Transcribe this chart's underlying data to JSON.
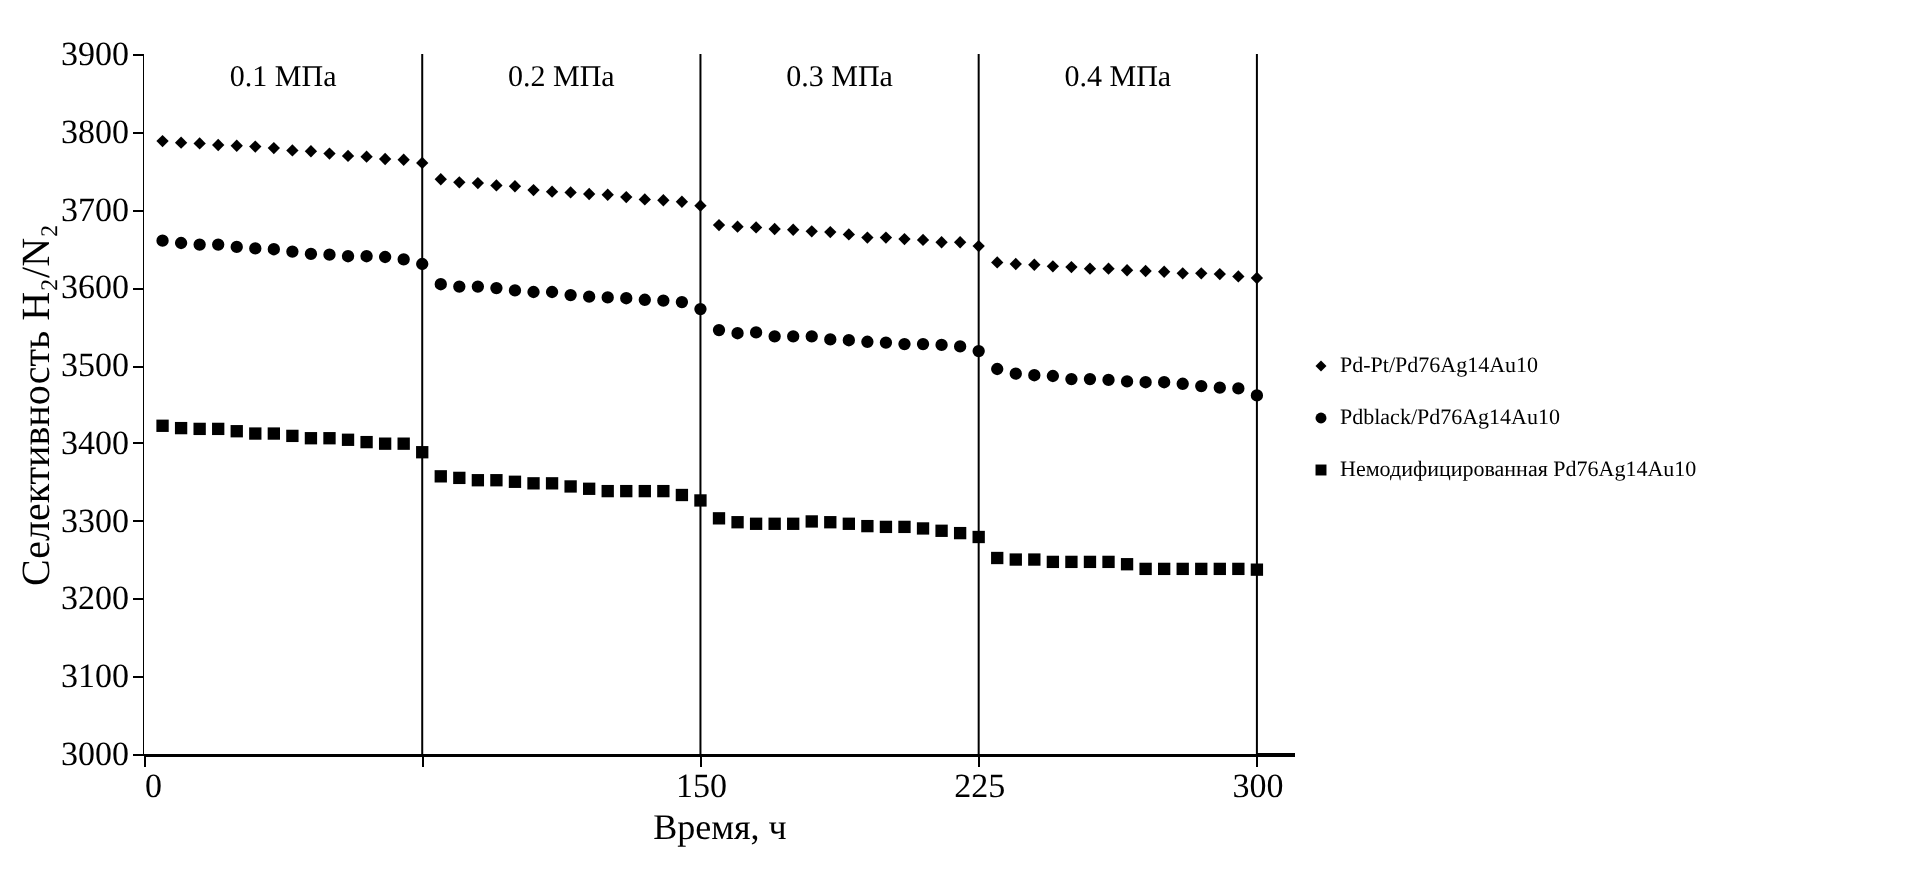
{
  "chart_data": {
    "type": "scatter",
    "xlabel": "Время, ч",
    "ylabel": "Селективность H₂/N₂",
    "x": [
      5,
      10,
      15,
      20,
      25,
      30,
      35,
      40,
      45,
      50,
      55,
      60,
      65,
      70,
      75,
      80,
      85,
      90,
      95,
      100,
      105,
      110,
      115,
      120,
      125,
      130,
      135,
      140,
      145,
      150,
      155,
      160,
      165,
      170,
      175,
      180,
      185,
      190,
      195,
      200,
      205,
      210,
      215,
      220,
      225,
      230,
      235,
      240,
      245,
      250,
      255,
      260,
      265,
      270,
      275,
      280,
      285,
      290,
      295,
      300
    ],
    "series": [
      {
        "name": "Pd-Pt/Pd76Ag14Au10",
        "color": "#000000",
        "marker": "diamond",
        "values": [
          3788,
          3786,
          3785,
          3783,
          3782,
          3781,
          3779,
          3776,
          3775,
          3772,
          3769,
          3768,
          3765,
          3764,
          3760,
          3739,
          3735,
          3734,
          3731,
          3730,
          3725,
          3723,
          3722,
          3720,
          3719,
          3716,
          3713,
          3712,
          3710,
          3705,
          3680,
          3678,
          3677,
          3675,
          3674,
          3672,
          3671,
          3668,
          3664,
          3664,
          3662,
          3661,
          3658,
          3658,
          3653,
          3632,
          3630,
          3629,
          3627,
          3626,
          3624,
          3624,
          3622,
          3621,
          3620,
          3618,
          3618,
          3617,
          3614,
          3612
        ]
      },
      {
        "name": "Pdblack/Pd76Ag14Au10",
        "color": "#000000",
        "marker": "circle",
        "values": [
          3660,
          3657,
          3655,
          3655,
          3652,
          3650,
          3649,
          3646,
          3643,
          3642,
          3640,
          3640,
          3639,
          3636,
          3630,
          3604,
          3601,
          3601,
          3599,
          3596,
          3594,
          3594,
          3590,
          3588,
          3587,
          3586,
          3584,
          3583,
          3581,
          3572,
          3545,
          3541,
          3542,
          3537,
          3537,
          3537,
          3533,
          3532,
          3530,
          3529,
          3527,
          3527,
          3526,
          3524,
          3518,
          3495,
          3489,
          3487,
          3486,
          3482,
          3482,
          3481,
          3479,
          3478,
          3478,
          3476,
          3473,
          3471,
          3470,
          3461
        ]
      },
      {
        "name": "Немодифицированная Pd76Ag14Au10",
        "color": "#000000",
        "marker": "square",
        "values": [
          3422,
          3419,
          3418,
          3418,
          3415,
          3412,
          3412,
          3409,
          3406,
          3406,
          3404,
          3401,
          3399,
          3399,
          3388,
          3357,
          3355,
          3352,
          3352,
          3350,
          3348,
          3348,
          3344,
          3341,
          3338,
          3338,
          3338,
          3338,
          3333,
          3326,
          3303,
          3298,
          3296,
          3296,
          3296,
          3299,
          3298,
          3296,
          3293,
          3292,
          3292,
          3290,
          3287,
          3284,
          3279,
          3252,
          3250,
          3250,
          3247,
          3247,
          3247,
          3247,
          3244,
          3238,
          3238,
          3238,
          3238,
          3238,
          3238,
          3237
        ]
      }
    ],
    "xlim": [
      0,
      310
    ],
    "xticks": [
      0,
      {
        "value": 75,
        "label": null
      },
      150,
      225,
      300
    ],
    "ylim": [
      3000,
      3900
    ],
    "yticks": [
      3000,
      3100,
      3200,
      3300,
      3400,
      3500,
      3600,
      3700,
      3800,
      3900
    ],
    "ref_lines": [
      {
        "axis": "x",
        "value": 75,
        "color": "#000000"
      },
      {
        "axis": "x",
        "value": 150,
        "color": "#000000"
      },
      {
        "axis": "x",
        "value": 225,
        "color": "#000000"
      },
      {
        "axis": "x",
        "value": 300,
        "color": "#000000"
      }
    ],
    "bands": [
      {
        "axis": "x",
        "from": 0,
        "to": 75,
        "label": "0.1 МПа",
        "color": "#ffffff"
      },
      {
        "axis": "x",
        "from": 75,
        "to": 150,
        "label": "0.2 МПа",
        "color": "#ffffff"
      },
      {
        "axis": "x",
        "from": 150,
        "to": 225,
        "label": "0.3 МПа",
        "color": "#ffffff"
      },
      {
        "axis": "x",
        "from": 225,
        "to": 300,
        "label": "0.4 МПа",
        "color": "#ffffff"
      }
    ],
    "legend": "right",
    "grid": false
  }
}
